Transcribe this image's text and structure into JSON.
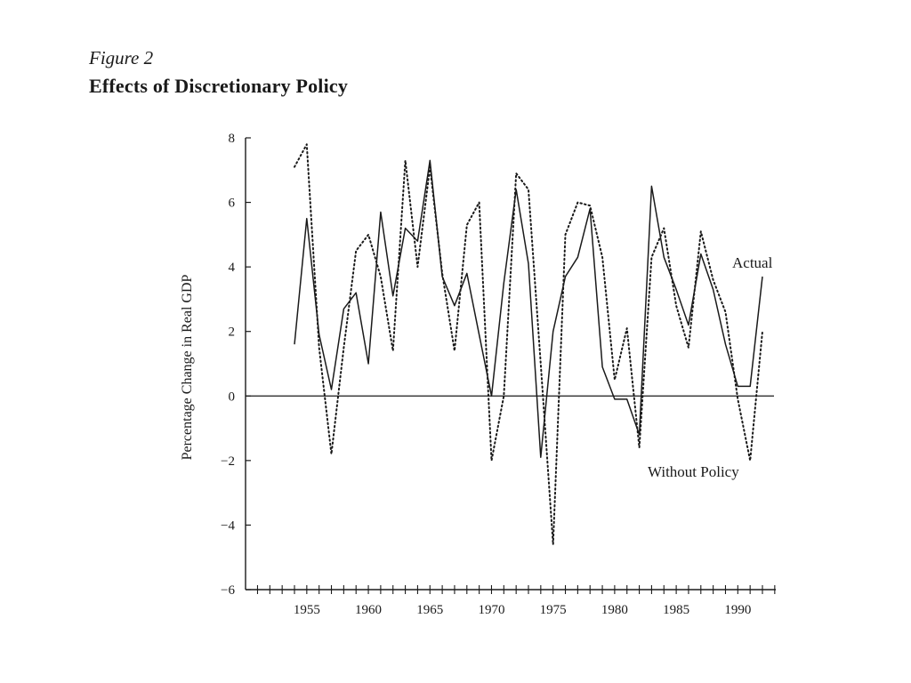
{
  "figure": {
    "label": "Figure 2",
    "title": "Effects of Discretionary Policy"
  },
  "chart_data": {
    "type": "line",
    "ylabel": "Percentage Change in Real GDP",
    "xlabel": "",
    "xlim": [
      1950,
      1993
    ],
    "ylim": [
      -6,
      8
    ],
    "yticks": [
      8,
      6,
      4,
      2,
      0,
      -2,
      -4,
      -6
    ],
    "yticklabels": [
      "8",
      "6",
      "4",
      "2",
      "0",
      "−2",
      "−4",
      "−6"
    ],
    "xticks": [
      1955,
      1960,
      1965,
      1970,
      1975,
      1980,
      1985,
      1990
    ],
    "xticklabels": [
      "1955",
      "1960",
      "1965",
      "1970",
      "1975",
      "1980",
      "1985",
      "1990"
    ],
    "zero_line": true,
    "grid": false,
    "series": [
      {
        "name": "Actual",
        "style": "solid",
        "x": [
          1954,
          1955,
          1956,
          1957,
          1958,
          1959,
          1960,
          1961,
          1962,
          1963,
          1964,
          1965,
          1966,
          1967,
          1968,
          1969,
          1970,
          1971,
          1972,
          1973,
          1974,
          1975,
          1976,
          1977,
          1978,
          1979,
          1980,
          1981,
          1982,
          1983,
          1984,
          1985,
          1986,
          1987,
          1988,
          1989,
          1990,
          1991,
          1992
        ],
        "y": [
          1.6,
          5.5,
          1.9,
          0.2,
          2.7,
          3.2,
          1.0,
          5.7,
          3.1,
          5.2,
          4.8,
          7.3,
          3.7,
          2.8,
          3.8,
          1.9,
          0.0,
          3.5,
          6.4,
          4.1,
          -1.9,
          2.0,
          3.7,
          4.3,
          5.8,
          0.9,
          -0.1,
          -0.1,
          -1.2,
          6.5,
          4.3,
          3.3,
          2.2,
          4.4,
          3.3,
          1.6,
          0.3,
          0.3,
          3.7
        ]
      },
      {
        "name": "Without Policy",
        "style": "dotted",
        "x": [
          1954,
          1955,
          1956,
          1957,
          1958,
          1959,
          1960,
          1961,
          1962,
          1963,
          1964,
          1965,
          1966,
          1967,
          1968,
          1969,
          1970,
          1971,
          1972,
          1973,
          1974,
          1975,
          1976,
          1977,
          1978,
          1979,
          1980,
          1981,
          1982,
          1983,
          1984,
          1985,
          1986,
          1987,
          1988,
          1989,
          1990,
          1991,
          1992
        ],
        "y": [
          7.1,
          7.8,
          1.5,
          -1.8,
          1.5,
          4.5,
          5.0,
          3.7,
          1.4,
          7.3,
          4.0,
          7.1,
          3.8,
          1.4,
          5.3,
          6.0,
          -2.0,
          0.0,
          6.9,
          6.4,
          1.0,
          -4.6,
          5.0,
          6.0,
          5.9,
          4.3,
          0.5,
          2.1,
          -1.6,
          4.3,
          5.2,
          2.8,
          1.5,
          5.1,
          3.6,
          2.6,
          -0.1,
          -2.0,
          2.0
        ]
      }
    ],
    "annotations": [
      {
        "text": "Actual",
        "series": "Actual",
        "near_x": 1992,
        "near_y": 4.0
      },
      {
        "text": "Without Policy",
        "series": "Without Policy",
        "near_x": 1988,
        "near_y": -2.3
      }
    ],
    "legend": "none (series labeled inline)"
  }
}
